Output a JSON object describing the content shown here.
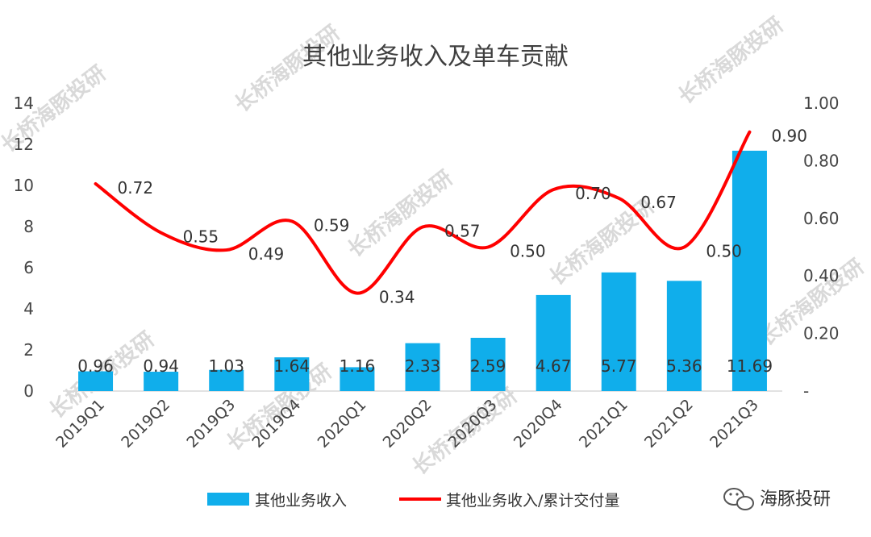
{
  "chart_data": {
    "type": "bar",
    "title": "其他业务收入及单车贡献",
    "categories": [
      "2019Q1",
      "2019Q2",
      "2019Q3",
      "2019Q4",
      "2020Q1",
      "2020Q2",
      "2020Q3",
      "2020Q4",
      "2021Q1",
      "2021Q2",
      "2021Q3"
    ],
    "series": [
      {
        "name": "其他业务收入",
        "type": "bar",
        "axis": "left",
        "color": "#10aeeb",
        "values": [
          0.96,
          0.94,
          1.03,
          1.64,
          1.16,
          2.33,
          2.59,
          4.67,
          5.77,
          5.36,
          11.69
        ],
        "labels": [
          "0.96",
          "0.94",
          "1.03",
          "1.64",
          "1.16",
          "2.33",
          "2.59",
          "4.67",
          "5.77",
          "5.36",
          "11.69"
        ]
      },
      {
        "name": "其他业务收入/累计交付量",
        "type": "line",
        "axis": "right",
        "color": "#ff0000",
        "smooth": true,
        "values": [
          0.72,
          0.55,
          0.49,
          0.59,
          0.34,
          0.57,
          0.5,
          0.7,
          0.67,
          0.5,
          0.9
        ],
        "labels": [
          "0.72",
          "0.55",
          "0.49",
          "0.59",
          "0.34",
          "0.57",
          "0.50",
          "0.70",
          "0.67",
          "0.50",
          "0.90"
        ]
      }
    ],
    "y_left": {
      "min": 0,
      "max": 14,
      "ticks": [
        "0",
        "2",
        "4",
        "6",
        "8",
        "10",
        "12",
        "14"
      ]
    },
    "y_right": {
      "min": 0,
      "max": 1.0,
      "ticks": [
        "-",
        "0.20",
        "0.40",
        "0.60",
        "0.80",
        "1.00"
      ]
    },
    "grid": false,
    "legend_position": "bottom"
  },
  "watermark": {
    "text": "长桥海豚投研"
  },
  "brand": {
    "text": "海豚投研",
    "icon": "wechat-icon"
  }
}
